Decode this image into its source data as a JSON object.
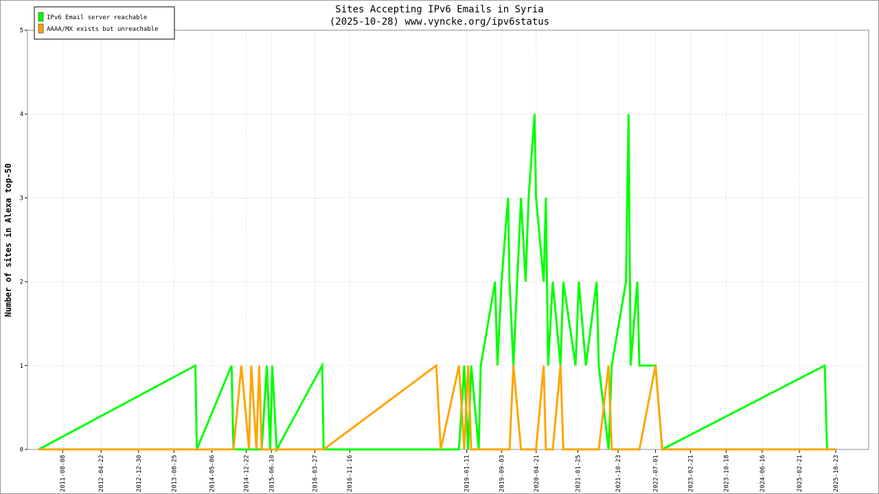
{
  "chart_data": {
    "type": "line",
    "title": "Sites Accepting IPv6 Emails in Syria",
    "subtitle": "(2025-10-28) www.vyncke.org/ipv6status",
    "y_label": "Number of sites in Alexa top-50",
    "x": [
      "2011-03-01",
      "2014-01-15",
      "2014-01-25",
      "2014-09-15",
      "2014-09-28",
      "2014-11-20",
      "2015-01-10",
      "2015-01-25",
      "2015-03-01",
      "2015-03-20",
      "2015-04-05",
      "2015-05-10",
      "2015-06-01",
      "2015-06-15",
      "2015-07-15",
      "2016-05-15",
      "2016-05-25",
      "2018-06-20",
      "2018-07-20",
      "2018-11-20",
      "2018-12-25",
      "2019-01-20",
      "2019-02-10",
      "2019-04-01",
      "2019-04-15",
      "2019-07-20",
      "2019-08-05",
      "2019-09-01",
      "2019-10-15",
      "2019-10-25",
      "2019-11-20",
      "2020-01-10",
      "2020-02-10",
      "2020-03-01",
      "2020-04-10",
      "2020-04-20",
      "2020-06-10",
      "2020-06-25",
      "2020-07-10",
      "2020-08-10",
      "2020-10-01",
      "2020-10-20",
      "2021-01-10",
      "2021-02-01",
      "2021-03-20",
      "2021-06-01",
      "2021-06-15",
      "2021-08-20",
      "2021-09-10",
      "2021-12-15",
      "2022-01-01",
      "2022-01-15",
      "2022-03-01",
      "2022-03-15",
      "2022-07-01",
      "2022-08-15",
      "2025-08-10",
      "2025-08-25",
      "2025-10-23"
    ],
    "series": [
      {
        "name": "IPv6 Email server reachable",
        "color": "#00ff00",
        "values": [
          0,
          1,
          0,
          1,
          0,
          0,
          0,
          0,
          0,
          0,
          0,
          1,
          0,
          1,
          0,
          1,
          0,
          0,
          0,
          0,
          1,
          0,
          1,
          0,
          1,
          2,
          1,
          2,
          3,
          2,
          1,
          3,
          2,
          3,
          4,
          3,
          2,
          3,
          1,
          2,
          1,
          2,
          1,
          2,
          1,
          2,
          1,
          0,
          1,
          2,
          4,
          1,
          2,
          1,
          1,
          0,
          1,
          0,
          0
        ]
      },
      {
        "name": "AAAA/MX exists but unreachable",
        "color": "#ffa500",
        "values": [
          0,
          0,
          0,
          0,
          0,
          1,
          0,
          1,
          0,
          1,
          0,
          0,
          0,
          0,
          0,
          0,
          0,
          1,
          0,
          1,
          0,
          1,
          0,
          0,
          0,
          0,
          0,
          0,
          0,
          0,
          1,
          0,
          0,
          0,
          0,
          0,
          1,
          0,
          0,
          0,
          1,
          0,
          0,
          0,
          0,
          0,
          0,
          1,
          0,
          0,
          0,
          0,
          0,
          0,
          1,
          0,
          0,
          0,
          0
        ]
      }
    ],
    "xlim": [
      "2010-12-15",
      "2026-06-01"
    ],
    "xticks": [
      "2011-08-08",
      "2012-04-22",
      "2012-12-30",
      "2013-08-25",
      "2014-05-06",
      "2014-12-22",
      "2015-06-10",
      "2016-03-27",
      "2016-11-16",
      "2019-01-11",
      "2019-09-03",
      "2020-04-21",
      "2021-01-25",
      "2021-10-23",
      "2022-07-01",
      "2023-02-21",
      "2023-10-18",
      "2024-06-16",
      "2025-02-21",
      "2025-10-23"
    ],
    "ylim": [
      0,
      5
    ],
    "yticks": [
      0,
      1,
      2,
      3,
      4,
      5
    ],
    "grid": true,
    "legend": "top-left"
  }
}
